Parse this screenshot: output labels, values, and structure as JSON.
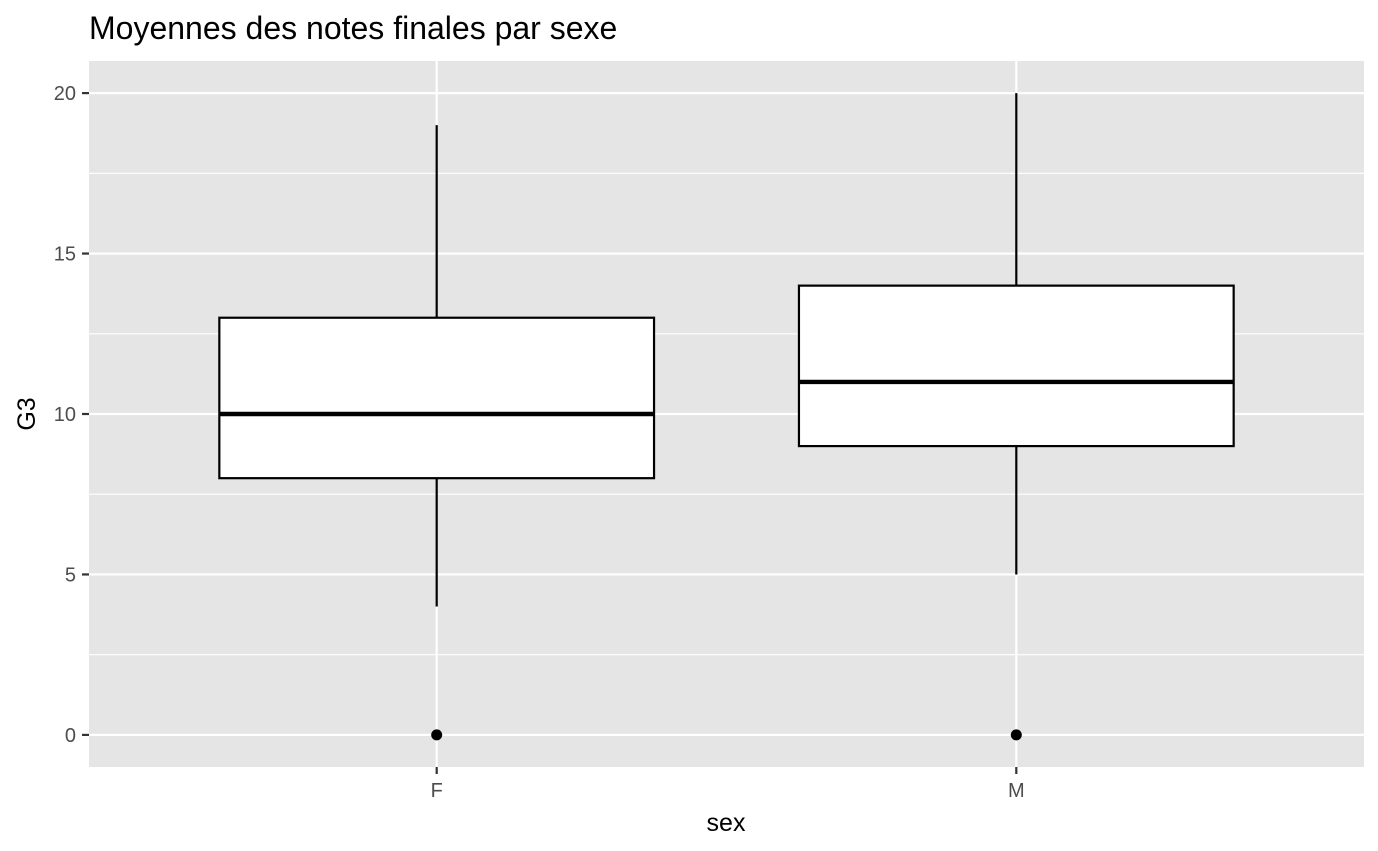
{
  "chart_data": {
    "type": "boxplot",
    "title": "Moyennes des notes finales par sexe",
    "xlabel": "sex",
    "ylabel": "G3",
    "categories": [
      "F",
      "M"
    ],
    "ylim": [
      -1,
      21
    ],
    "y_ticks": [
      0,
      5,
      10,
      15,
      20
    ],
    "y_tick_labels": [
      "0",
      "5",
      "10",
      "15",
      "20"
    ],
    "grid": true,
    "boxes": [
      {
        "category": "F",
        "whisker_low": 4,
        "q1": 8,
        "median": 10,
        "q3": 13,
        "whisker_high": 19,
        "outliers": [
          0
        ]
      },
      {
        "category": "M",
        "whisker_low": 5,
        "q1": 9,
        "median": 11,
        "q3": 14,
        "whisker_high": 20,
        "outliers": [
          0
        ]
      }
    ],
    "colors": {
      "panel_background": "#e5e5e5",
      "grid": "#ffffff",
      "box_fill": "#ffffff",
      "box_stroke": "#000000",
      "tick_text": "#4d4d4d",
      "tick_mark": "#333333"
    }
  }
}
